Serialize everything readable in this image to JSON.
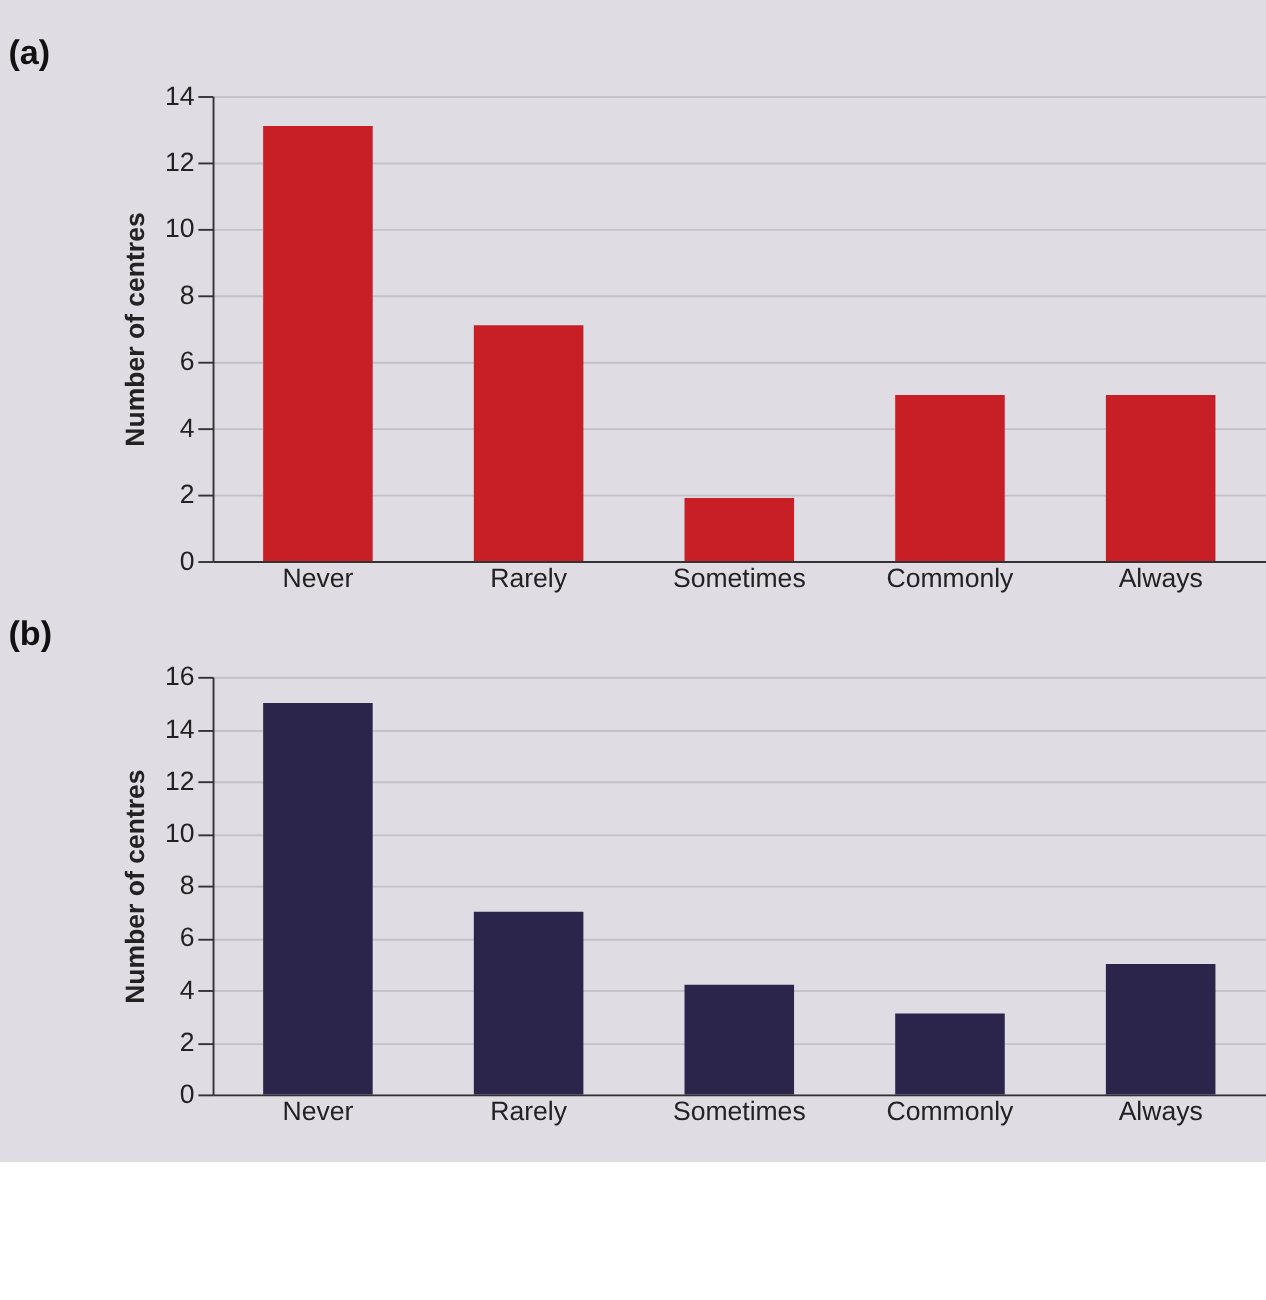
{
  "chart_data": [
    {
      "type": "bar",
      "title": "(a)",
      "ylabel": "Number of centres",
      "categories": [
        "Never",
        "Rarely",
        "Sometimes",
        "Commonly",
        "Always"
      ],
      "series": [
        {
          "color": "#c81f27",
          "values": [
            13.1,
            7.1,
            1.9,
            5,
            5
          ]
        }
      ],
      "ylim": [
        0,
        14
      ],
      "yticks": [
        0,
        2,
        4,
        6,
        8,
        10,
        12,
        14
      ],
      "grid": "y",
      "legend": false
    },
    {
      "type": "bar",
      "title": "(b)",
      "ylabel": "Number of centres",
      "categories": [
        "Never",
        "Rarely",
        "Sometimes",
        "Commonly",
        "Always"
      ],
      "series": [
        {
          "color": "#2b254b",
          "values": [
            15,
            7,
            4.2,
            3.1,
            5
          ]
        }
      ],
      "ylim": [
        0,
        16
      ],
      "yticks": [
        0,
        2,
        4,
        6,
        8,
        10,
        12,
        14,
        16
      ],
      "grid": "y",
      "legend": false
    }
  ]
}
